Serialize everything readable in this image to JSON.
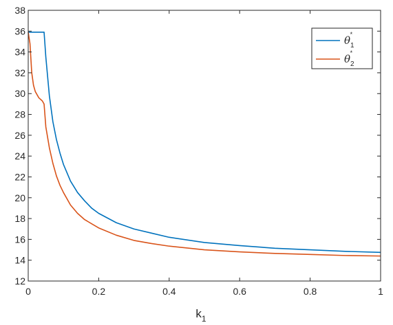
{
  "chart_data": {
    "type": "line",
    "title": "",
    "xlabel": "k",
    "xlabel_subscript": "1",
    "ylabel": "",
    "xlim": [
      0,
      1
    ],
    "ylim": [
      12,
      38
    ],
    "xticks": [
      0,
      0.2,
      0.4,
      0.6,
      0.8,
      1
    ],
    "xtick_labels": [
      "0",
      "0.2",
      "0.4",
      "0.6",
      "0.8",
      "1"
    ],
    "yticks": [
      12,
      14,
      16,
      18,
      20,
      22,
      24,
      26,
      28,
      30,
      32,
      34,
      36,
      38
    ],
    "ytick_labels": [
      "12",
      "14",
      "16",
      "18",
      "20",
      "22",
      "24",
      "26",
      "28",
      "30",
      "32",
      "34",
      "36",
      "38"
    ],
    "grid": false,
    "legend_position": "top-right",
    "series": [
      {
        "name": "θ",
        "name_sub": "1",
        "name_sup": "*",
        "color": "#0072BD",
        "x": [
          0,
          0.045,
          0.05,
          0.06,
          0.07,
          0.08,
          0.09,
          0.1,
          0.12,
          0.14,
          0.16,
          0.18,
          0.2,
          0.25,
          0.3,
          0.35,
          0.4,
          0.5,
          0.6,
          0.7,
          0.8,
          0.9,
          1.0
        ],
        "y": [
          35.9,
          35.9,
          33.5,
          29.8,
          27.3,
          25.6,
          24.3,
          23.2,
          21.6,
          20.5,
          19.7,
          19.0,
          18.5,
          17.6,
          17.0,
          16.6,
          16.2,
          15.7,
          15.4,
          15.15,
          15.0,
          14.85,
          14.75
        ]
      },
      {
        "name": "θ",
        "name_sub": "2",
        "name_sup": "*",
        "color": "#D95319",
        "x": [
          0,
          0.005,
          0.01,
          0.015,
          0.02,
          0.03,
          0.04,
          0.045,
          0.05,
          0.06,
          0.07,
          0.08,
          0.09,
          0.1,
          0.12,
          0.14,
          0.16,
          0.18,
          0.2,
          0.25,
          0.3,
          0.35,
          0.4,
          0.5,
          0.6,
          0.7,
          0.8,
          0.9,
          1.0
        ],
        "y": [
          35.9,
          34.8,
          32.0,
          30.8,
          30.2,
          29.6,
          29.3,
          29.0,
          26.8,
          24.8,
          23.3,
          22.1,
          21.2,
          20.5,
          19.3,
          18.5,
          17.9,
          17.5,
          17.1,
          16.4,
          15.9,
          15.6,
          15.35,
          15.0,
          14.8,
          14.65,
          14.55,
          14.45,
          14.4
        ]
      }
    ]
  }
}
